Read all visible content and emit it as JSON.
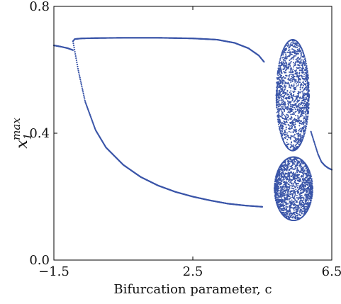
{
  "chart_data": {
    "type": "scatter",
    "title": "",
    "xlabel": "Bifurcation parameter, c",
    "ylabel_base": "x",
    "ylabel_sub": "1",
    "ylabel_sup": "max",
    "xlim": [
      -1.5,
      6.5
    ],
    "ylim": [
      0.0,
      0.8
    ],
    "xticks": [
      -1.5,
      2.5,
      6.5
    ],
    "xtick_labels": [
      "−1.5",
      "2.5",
      "6.5"
    ],
    "yticks": [
      0.0,
      0.4,
      0.8
    ],
    "ytick_labels": [
      "0.0",
      "0.4",
      "0.8"
    ],
    "grid": false,
    "legend": "none",
    "point_color": "#3a55a8",
    "series": [
      {
        "branch": "period-1",
        "x": [
          -1.5,
          -1.3,
          -1.1,
          -0.95
        ],
        "y": [
          0.677,
          0.673,
          0.668,
          0.662
        ]
      },
      {
        "branch": "upper",
        "x": [
          -0.95,
          -0.9,
          -0.7,
          -0.3,
          0.5,
          1.5,
          2.5,
          3.2,
          3.7,
          4.1,
          4.4,
          4.55
        ],
        "y": [
          0.69,
          0.697,
          0.699,
          0.7,
          0.701,
          0.701,
          0.699,
          0.695,
          0.685,
          0.668,
          0.645,
          0.625
        ]
      },
      {
        "branch": "lower",
        "x": [
          -0.95,
          -0.8,
          -0.6,
          -0.3,
          0.0,
          0.5,
          1.0,
          1.5,
          2.0,
          2.5,
          3.0,
          3.5,
          4.0,
          4.5
        ],
        "y": [
          0.69,
          0.6,
          0.5,
          0.41,
          0.355,
          0.3,
          0.262,
          0.235,
          0.215,
          0.2,
          0.188,
          0.178,
          0.172,
          0.168
        ]
      },
      {
        "branch": "chaotic-upper",
        "x_range": [
          4.9,
          5.85
        ],
        "y_center": 0.52,
        "y_halfwidth": 0.175
      },
      {
        "branch": "chaotic-lower",
        "x_range": [
          4.85,
          5.95
        ],
        "y_center": 0.225,
        "y_halfwidth": 0.1
      },
      {
        "branch": "post-chaos",
        "x": [
          5.9,
          6.0,
          6.1,
          6.2,
          6.3,
          6.4,
          6.5
        ],
        "y": [
          0.405,
          0.37,
          0.335,
          0.31,
          0.298,
          0.29,
          0.285
        ]
      }
    ]
  }
}
